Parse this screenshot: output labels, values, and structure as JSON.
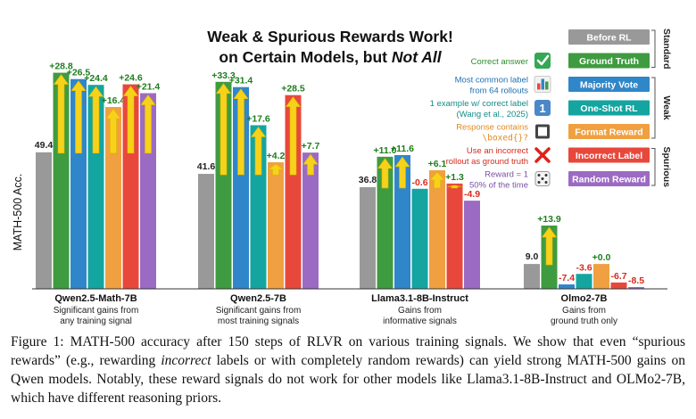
{
  "chart_data": {
    "type": "bar",
    "title_line1": "Weak & Spurious Rewards Work!",
    "title_line2_prefix": "on Certain Models, but ",
    "title_line2_emph": "Not All",
    "ylabel": "MATH-500 Acc.",
    "ylim": [
      0,
      80
    ],
    "series": [
      {
        "key": "before",
        "name": "Before RL",
        "color": "#999999"
      },
      {
        "key": "ground_truth",
        "name": "Ground Truth",
        "color": "#3f9b3f"
      },
      {
        "key": "majority",
        "name": "Majority Vote",
        "color": "#2f86c8"
      },
      {
        "key": "oneshot",
        "name": "One-Shot RL",
        "color": "#14a5a0"
      },
      {
        "key": "format",
        "name": "Format Reward",
        "color": "#f0a040"
      },
      {
        "key": "incorrect",
        "name": "Incorrect Label",
        "color": "#e8483b"
      },
      {
        "key": "random",
        "name": "Random Reward",
        "color": "#9b6bc3"
      }
    ],
    "groups": [
      {
        "name": "Qwen2.5-Math-7B",
        "subtitle": [
          "Significant gains from",
          "any training signal"
        ],
        "base": 49.4,
        "base_label": "49.4",
        "deltas": [
          28.8,
          26.5,
          24.4,
          16.4,
          24.6,
          21.4
        ],
        "delta_labels": [
          "+28.8",
          "+26.5",
          "+24.4",
          "+16.4",
          "+24.6",
          "+21.4"
        ]
      },
      {
        "name": "Qwen2.5-7B",
        "subtitle": [
          "Significant gains from",
          "most training signals"
        ],
        "base": 41.6,
        "base_label": "41.6",
        "deltas": [
          33.3,
          31.4,
          17.6,
          4.2,
          28.5,
          7.7
        ],
        "delta_labels": [
          "+33.3",
          "+31.4",
          "+17.6",
          "+4.2",
          "+28.5",
          "+7.7"
        ]
      },
      {
        "name": "Llama3.1-8B-Instruct",
        "subtitle": [
          "Gains from",
          "informative signals"
        ],
        "base": 36.8,
        "base_label": "36.8",
        "deltas": [
          11.0,
          11.6,
          -0.6,
          6.1,
          1.3,
          -4.9
        ],
        "delta_labels": [
          "+11.0",
          "+11.6",
          "-0.6",
          "+6.1",
          "+1.3",
          "-4.9"
        ]
      },
      {
        "name": "Olmo2-7B",
        "subtitle": [
          "Gains from",
          "ground truth only"
        ],
        "base": 9.0,
        "base_label": "9.0",
        "deltas": [
          13.9,
          -7.4,
          -3.6,
          0.0,
          -6.7,
          -8.5
        ],
        "delta_labels": [
          "+13.9",
          "-7.4",
          "-3.6",
          "+0.0",
          "-6.7",
          "-8.5"
        ]
      }
    ],
    "legend": {
      "placement": "top-right",
      "items": [
        {
          "key": "before",
          "desc": [],
          "icon": "none"
        },
        {
          "key": "ground_truth",
          "desc": [
            "Correct answer"
          ],
          "icon": "check-icon"
        },
        {
          "key": "majority",
          "desc": [
            "Most common label",
            "from 64 rollouts"
          ],
          "icon": "bar-chart-icon"
        },
        {
          "key": "oneshot",
          "desc": [
            "1 example w/ correct label",
            "(Wang et al., 2025)"
          ],
          "icon": "one-icon"
        },
        {
          "key": "format",
          "desc_prefix": "Response contains",
          "desc_code": "\\boxed{}?",
          "desc": [],
          "icon": "box-icon"
        },
        {
          "key": "incorrect",
          "desc": [
            "Use an incorrect",
            "rollout as ground truth"
          ],
          "icon": "cross-icon"
        },
        {
          "key": "random",
          "desc": [
            "Reward = 1",
            "50% of the time"
          ],
          "icon": "dice-icon"
        }
      ],
      "brackets": [
        {
          "label": "Standard",
          "from": 0,
          "to": 1
        },
        {
          "label": "Weak",
          "from": 2,
          "to": 4
        },
        {
          "label": "Spurious",
          "from": 5,
          "to": 6
        }
      ]
    }
  },
  "caption": [
    {
      "t": "Figure 1: MATH-500 accuracy after 150 steps of RLVR on various training signals. We show that even “spurious rewards” (e.g., rewarding "
    },
    {
      "t": "incorrect",
      "i": true
    },
    {
      "t": " labels or with completely random rewards) can yield strong MATH-500 gains on Qwen models. Notably, these reward signals do not work for other models like Llama3.1-8B-Instruct and OLMo2-7B, which have different reasoning priors."
    }
  ]
}
